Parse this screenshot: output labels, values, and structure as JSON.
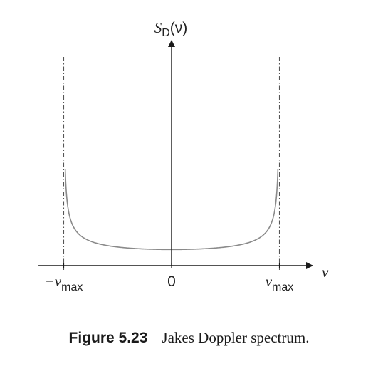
{
  "chart_data": {
    "type": "line",
    "title": "",
    "y_axis_label": {
      "symbol": "S",
      "subscript": "D",
      "argument": "(ν)"
    },
    "x_axis_label": "ν",
    "x_ticks": [
      {
        "value": -1,
        "label": "−ν",
        "subscript": "max"
      },
      {
        "value": 0,
        "label": "0",
        "subscript": ""
      },
      {
        "value": 1,
        "label": "ν",
        "subscript": "max"
      }
    ],
    "xlim": [
      -1.3,
      1.32
    ],
    "ylim": [
      0,
      1.28
    ],
    "grid": false,
    "legend": "none",
    "asymptotes": [
      -1,
      1
    ],
    "series": [
      {
        "function": "1/sqrt(1 - (x/xmax)^2)",
        "scale": 0.0838,
        "x_domain": [
          -0.986,
          0.986
        ],
        "x": [
          -0.986,
          -0.95,
          -0.9,
          -0.8,
          -0.6,
          -0.4,
          -0.2,
          0,
          0.2,
          0.4,
          0.6,
          0.8,
          0.9,
          0.95,
          0.986
        ],
        "y": [
          0.502,
          0.268,
          0.192,
          0.14,
          0.105,
          0.091,
          0.086,
          0.084,
          0.086,
          0.091,
          0.105,
          0.14,
          0.192,
          0.268,
          0.502
        ]
      }
    ],
    "colors": {
      "curve": "#8a8a8a",
      "axis": "#1a1a1a",
      "asymptote": "#555555"
    }
  },
  "caption": {
    "number": "Figure 5.23",
    "title": "Jakes Doppler spectrum."
  }
}
